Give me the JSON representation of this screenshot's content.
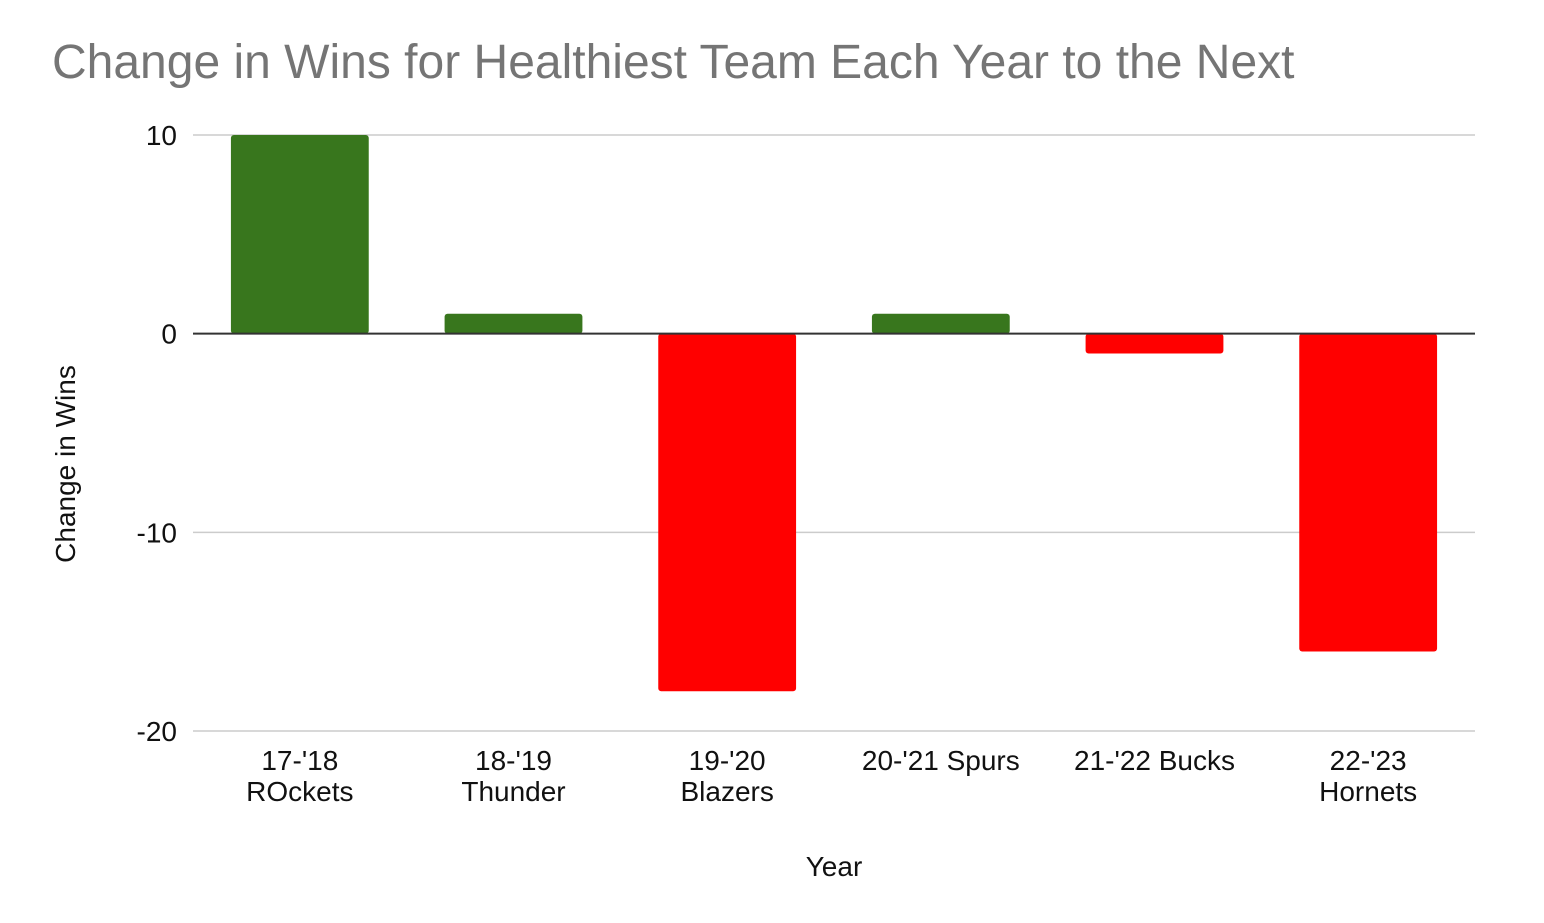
{
  "chart_data": {
    "type": "bar",
    "title": "Change in Wins for Healthiest Team Each Year to the Next",
    "xlabel": "Year",
    "ylabel": "Change in Wins",
    "categories": [
      [
        "17-'18",
        "ROckets"
      ],
      [
        "18-'19",
        "Thunder"
      ],
      [
        "19-'20",
        "Blazers"
      ],
      [
        "20-'21 Spurs"
      ],
      [
        "21-'22 Bucks"
      ],
      [
        "22-'23",
        "Hornets"
      ]
    ],
    "values": [
      10,
      1,
      -18,
      1,
      -1,
      -16
    ],
    "ylim": [
      -20,
      10
    ],
    "yticks": [
      10,
      0,
      -10,
      -20
    ],
    "grid": true,
    "legend": "none",
    "colors": {
      "positive": "#38761d",
      "negative": "#ff0000",
      "title": "#757575",
      "grid": "#cccccc",
      "zero_line": "#333333"
    }
  }
}
